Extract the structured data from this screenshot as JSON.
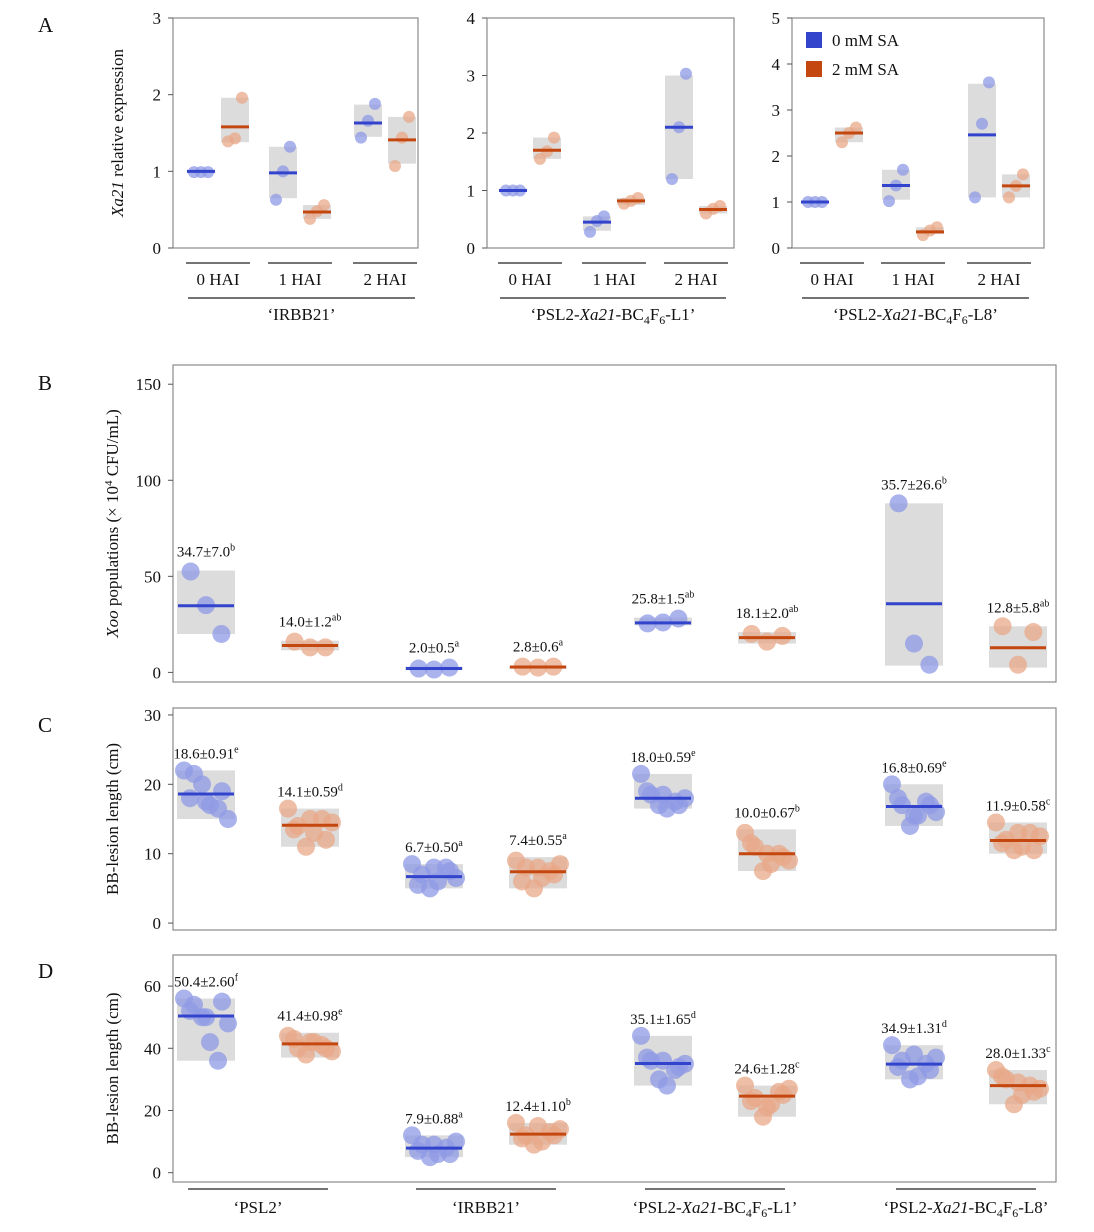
{
  "colors": {
    "sa0": "#3344cc",
    "sa2": "#c4470f",
    "sa0_point": "#8f9ae6",
    "sa2_point": "#e8a888",
    "box": "#d8d8d8"
  },
  "legend": {
    "items": [
      "0 mM SA",
      "2 mM SA"
    ],
    "placement": "top-right of panel A3"
  },
  "panel_letters": [
    "A",
    "B",
    "C",
    "D"
  ],
  "chart_data": [
    {
      "id": "A1",
      "type": "scatter",
      "panel": "A",
      "ylabel_italic": "Xa21",
      "ylabel_rest": " relative expression",
      "ylim": [
        0,
        3
      ],
      "yticks": [
        0,
        1,
        2,
        3
      ],
      "categories": [
        "0 HAI",
        "1 HAI",
        "2 HAI"
      ],
      "group_label": "‘IRBB21’",
      "series": [
        {
          "name": "0 mM SA",
          "means": [
            1.0,
            0.98,
            1.63
          ],
          "ranges": [
            [
              1.0,
              1.0
            ],
            [
              0.65,
              1.32
            ],
            [
              1.45,
              1.87
            ]
          ],
          "points": [
            [
              0.99,
              0.99,
              0.99
            ],
            [
              0.63,
              1.0,
              1.32
            ],
            [
              1.44,
              1.66,
              1.88
            ]
          ]
        },
        {
          "name": "2 mM SA",
          "means": [
            1.58,
            0.47,
            1.41
          ],
          "ranges": [
            [
              1.38,
              1.96
            ],
            [
              0.38,
              0.56
            ],
            [
              1.1,
              1.71
            ]
          ],
          "points": [
            [
              1.39,
              1.43,
              1.96
            ],
            [
              0.38,
              0.48,
              0.56
            ],
            [
              1.07,
              1.44,
              1.71
            ]
          ]
        }
      ]
    },
    {
      "id": "A2",
      "type": "scatter",
      "panel": "A",
      "ylim": [
        0,
        4
      ],
      "yticks": [
        0,
        1,
        2,
        3,
        4
      ],
      "categories": [
        "0 HAI",
        "1 HAI",
        "2 HAI"
      ],
      "group_label_parts": [
        "‘PSL2-",
        "Xa21",
        "-BC",
        "4",
        "F",
        "6",
        "-L1’"
      ],
      "series": [
        {
          "name": "0 mM SA",
          "means": [
            1.0,
            0.45,
            2.1
          ],
          "ranges": [
            [
              0.98,
              1.02
            ],
            [
              0.3,
              0.55
            ],
            [
              1.2,
              3.0
            ]
          ],
          "points": [
            [
              1.0,
              1.0,
              1.0
            ],
            [
              0.28,
              0.47,
              0.55
            ],
            [
              1.2,
              2.1,
              3.03
            ]
          ]
        },
        {
          "name": "2 mM SA",
          "means": [
            1.7,
            0.82,
            0.67
          ],
          "ranges": [
            [
              1.55,
              1.92
            ],
            [
              0.75,
              0.87
            ],
            [
              0.6,
              0.73
            ]
          ],
          "points": [
            [
              1.55,
              1.68,
              1.92
            ],
            [
              0.77,
              0.82,
              0.87
            ],
            [
              0.6,
              0.68,
              0.73
            ]
          ]
        }
      ]
    },
    {
      "id": "A3",
      "type": "scatter",
      "panel": "A",
      "ylim": [
        0,
        5
      ],
      "yticks": [
        0,
        1,
        2,
        3,
        4,
        5
      ],
      "categories": [
        "0 HAI",
        "1 HAI",
        "2 HAI"
      ],
      "group_label_parts": [
        "‘PSL2-",
        "Xa21",
        "-BC",
        "4",
        "F",
        "6",
        "-L8’"
      ],
      "series": [
        {
          "name": "0 mM SA",
          "means": [
            1.0,
            1.36,
            2.46
          ],
          "ranges": [
            [
              0.98,
              1.02
            ],
            [
              1.05,
              1.7
            ],
            [
              1.1,
              3.57
            ]
          ],
          "points": [
            [
              1.0,
              1.0,
              1.0
            ],
            [
              1.02,
              1.36,
              1.7
            ],
            [
              1.1,
              2.7,
              3.6
            ]
          ]
        },
        {
          "name": "2 mM SA",
          "means": [
            2.5,
            0.35,
            1.35
          ],
          "ranges": [
            [
              2.3,
              2.62
            ],
            [
              0.3,
              0.45
            ],
            [
              1.1,
              1.6
            ]
          ],
          "points": [
            [
              2.3,
              2.5,
              2.62
            ],
            [
              0.28,
              0.38,
              0.45
            ],
            [
              1.1,
              1.35,
              1.6
            ]
          ]
        }
      ]
    },
    {
      "id": "B",
      "type": "scatter",
      "panel": "B",
      "ylabel_italic": "Xoo",
      "ylabel_rest": " populations (× 10",
      "ylabel_sup": "4",
      "ylabel_end": " CFU/mL)",
      "ylim": [
        -5,
        160
      ],
      "yticks": [
        0,
        50,
        100,
        150
      ],
      "categories": [
        "‘PSL2’",
        "‘IRBB21’",
        "‘PSL2-Xa21-BC4F6-L1’",
        "‘PSL2-Xa21-BC4F6-L8’"
      ],
      "series": [
        {
          "name": "0 mM SA",
          "means": [
            34.7,
            2.0,
            25.8,
            35.7
          ],
          "ranges": [
            [
              20,
              53
            ],
            [
              1.2,
              3.0
            ],
            [
              24.5,
              28.5
            ],
            [
              3.5,
              88
            ]
          ],
          "points": [
            [
              52.5,
              35,
              20
            ],
            [
              2.0,
              1.5,
              2.5
            ],
            [
              25.5,
              26,
              28
            ],
            [
              88,
              15,
              4
            ]
          ],
          "labels": [
            "34.7±7.0",
            "2.0±0.5",
            "25.8±1.5",
            "35.7±26.6"
          ],
          "sup": [
            "b",
            "a",
            "ab",
            "b"
          ]
        },
        {
          "name": "2 mM SA",
          "means": [
            14.0,
            2.8,
            18.1,
            12.8
          ],
          "ranges": [
            [
              11.5,
              16.5
            ],
            [
              1.8,
              3.5
            ],
            [
              15,
              21
            ],
            [
              2.5,
              24
            ]
          ],
          "points": [
            [
              16,
              13,
              13
            ],
            [
              3,
              2.5,
              3
            ],
            [
              20,
              16,
              19
            ],
            [
              24,
              4,
              21
            ]
          ],
          "labels": [
            "14.0±1.2",
            "2.8±0.6",
            "18.1±2.0",
            "12.8±5.8"
          ],
          "sup": [
            "ab",
            "a",
            "ab",
            "ab"
          ]
        }
      ]
    },
    {
      "id": "C",
      "type": "scatter",
      "panel": "C",
      "ylabel": "BB-lesion length (cm)",
      "ylim": [
        -1,
        31
      ],
      "yticks": [
        0,
        10,
        20,
        30
      ],
      "categories": [
        "‘PSL2’",
        "‘IRBB21’",
        "‘PSL2-Xa21-BC4F6-L1’",
        "‘PSL2-Xa21-BC4F6-L8’"
      ],
      "series": [
        {
          "name": "0 mM SA",
          "means": [
            18.6,
            6.7,
            18.0,
            16.8
          ],
          "ranges": [
            [
              15,
              22
            ],
            [
              5,
              8.5
            ],
            [
              16.5,
              21.5
            ],
            [
              14,
              20
            ]
          ],
          "points": [
            [
              22,
              21.5,
              20,
              17,
              16.5,
              15,
              18,
              19,
              17.5
            ],
            [
              8.5,
              7,
              5,
              6,
              8,
              6.5,
              5.5,
              7.5,
              8
            ],
            [
              21.5,
              18.5,
              17,
              16.5,
              17.5,
              18,
              19,
              17,
              18.5
            ],
            [
              20,
              17,
              14,
              15.5,
              17.5,
              16,
              18,
              17,
              15.5
            ]
          ],
          "labels": [
            "18.6±0.91",
            "6.7±0.50",
            "18.0±0.59",
            "16.8±0.69"
          ],
          "sup": [
            "e",
            "a",
            "e",
            "e"
          ]
        },
        {
          "name": "2 mM SA",
          "means": [
            14.1,
            7.4,
            10.0,
            11.9
          ],
          "ranges": [
            [
              11,
              16.5
            ],
            [
              5,
              9.5
            ],
            [
              7.5,
              13.5
            ],
            [
              10,
              14.5
            ]
          ],
          "points": [
            [
              16.5,
              14,
              11,
              13,
              15,
              14.5,
              13.5,
              12,
              15
            ],
            [
              9,
              8,
              5,
              6.5,
              7.5,
              8.5,
              6,
              7,
              8
            ],
            [
              13,
              11,
              7.5,
              8.5,
              10,
              9,
              11.5,
              9.5,
              10
            ],
            [
              14.5,
              12,
              10.5,
              11,
              13,
              12.5,
              11.5,
              10.5,
              13
            ]
          ],
          "labels": [
            "14.1±0.59",
            "7.4±0.55",
            "10.0±0.67",
            "11.9±0.58"
          ],
          "sup": [
            "d",
            "a",
            "b",
            "c"
          ]
        }
      ]
    },
    {
      "id": "D",
      "type": "scatter",
      "panel": "D",
      "ylabel": "BB-lesion length (cm)",
      "ylim": [
        -3,
        70
      ],
      "yticks": [
        0,
        20,
        40,
        60
      ],
      "categories": [
        "‘PSL2’",
        "‘IRBB21’",
        "‘PSL2-Xa21-BC4F6-L1’",
        "‘PSL2-Xa21-BC4F6-L8’"
      ],
      "group_label_parts": [
        [
          "‘PSL2’"
        ],
        [
          "‘IRBB21’"
        ],
        [
          "‘PSL2-",
          "Xa21",
          "-BC",
          "4",
          "F",
          "6",
          "-L1’"
        ],
        [
          "‘PSL2-",
          "Xa21",
          "-BC",
          "4",
          "F",
          "6",
          "-L8’"
        ]
      ],
      "series": [
        {
          "name": "0 mM SA",
          "means": [
            50.4,
            7.9,
            35.1,
            34.9
          ],
          "ranges": [
            [
              36,
              56
            ],
            [
              5,
              12
            ],
            [
              28,
              44
            ],
            [
              30,
              41
            ]
          ],
          "points": [
            [
              56,
              54,
              50,
              42,
              36,
              48,
              52,
              55,
              50
            ],
            [
              12,
              9,
              5,
              6,
              8,
              10,
              7,
              6,
              9
            ],
            [
              44,
              36,
              30,
              28,
              33,
              35,
              37,
              34,
              36
            ],
            [
              41,
              36,
              30,
              31,
              35,
              37,
              34,
              33,
              38
            ]
          ],
          "labels": [
            "50.4±2.60",
            "7.9±0.88",
            "35.1±1.65",
            "34.9±1.31"
          ],
          "sup": [
            "f",
            "a",
            "d",
            "d"
          ]
        },
        {
          "name": "2 mM SA",
          "means": [
            41.4,
            12.4,
            24.6,
            28.0
          ],
          "ranges": [
            [
              37,
              45
            ],
            [
              9,
              16
            ],
            [
              18,
              28
            ],
            [
              22,
              33
            ]
          ],
          "points": [
            [
              44,
              40,
              38,
              42,
              41,
              39,
              43,
              40,
              42
            ],
            [
              16,
              12,
              9,
              10,
              13,
              14,
              11,
              12,
              15
            ],
            [
              28,
              24,
              18,
              22,
              26,
              27,
              23,
              25,
              21
            ],
            [
              33,
              30,
              22,
              25,
              28,
              27,
              31,
              26,
              29
            ]
          ],
          "labels": [
            "41.4±0.98",
            "12.4±1.10",
            "24.6±1.28",
            "28.0±1.33"
          ],
          "sup": [
            "e",
            "b",
            "c",
            "c"
          ]
        }
      ]
    }
  ]
}
